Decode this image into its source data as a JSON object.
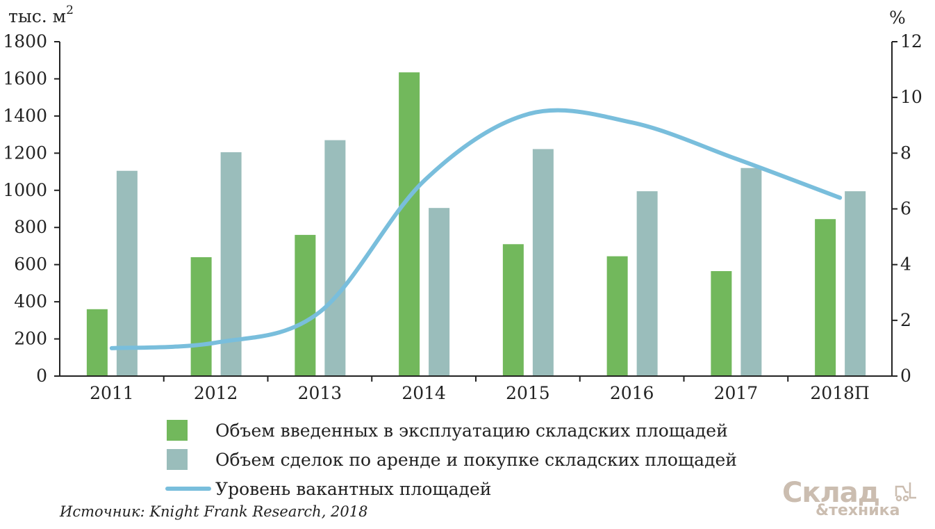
{
  "colors": {
    "bar_commissioned": "#72b85c",
    "bar_deals": "#9abdbb",
    "line_vacancy": "#79bedc",
    "axis": "#222222",
    "watermark": "#cbbdb0"
  },
  "axes": {
    "left_unit_base": "тыс. м",
    "left_unit_sup": "2",
    "right_unit": "%"
  },
  "chart_data": {
    "type": "bar",
    "categories": [
      "2011",
      "2012",
      "2013",
      "2014",
      "2015",
      "2016",
      "2017",
      "2018П"
    ],
    "series": [
      {
        "name": "Объем введенных в эксплуатацию складских площадей",
        "type": "bar",
        "axis": "left",
        "values": [
          360,
          640,
          760,
          1635,
          710,
          645,
          565,
          845
        ]
      },
      {
        "name": "Объем сделок по аренде и покупке складских площадей",
        "type": "bar",
        "axis": "left",
        "values": [
          1105,
          1205,
          1270,
          905,
          1222,
          995,
          1120,
          995
        ]
      },
      {
        "name": "Уровень вакантных площадей",
        "type": "line",
        "axis": "right",
        "values": [
          1.0,
          1.2,
          2.3,
          7.0,
          9.4,
          9.1,
          7.8,
          6.4
        ]
      }
    ],
    "left_ylim": [
      0,
      1800
    ],
    "left_ticks": [
      0,
      200,
      400,
      600,
      800,
      1000,
      1200,
      1400,
      1600,
      1800
    ],
    "right_ylim": [
      0,
      12
    ],
    "right_ticks": [
      0,
      2,
      4,
      6,
      8,
      10,
      12
    ],
    "grid": false,
    "legend_position": "bottom"
  },
  "legend": [
    {
      "key": "bar_commissioned",
      "label": "Объем введенных в эксплуатацию складских площадей"
    },
    {
      "key": "bar_deals",
      "label": "Объем сделок по аренде и покупке складских площадей"
    },
    {
      "key": "line_vacancy",
      "label": "Уровень вакантных площадей"
    }
  ],
  "source": "Источник: Knight Frank Research, 2018",
  "watermark": {
    "top": "Склад",
    "bottom": "&техника"
  }
}
